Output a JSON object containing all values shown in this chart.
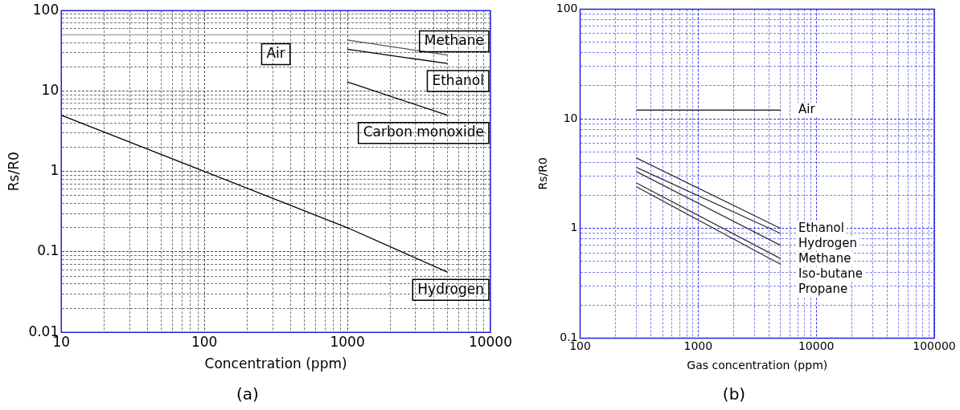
{
  "chart_data": [
    {
      "type": "line",
      "title": "(a)",
      "xlabel": "Concentration (ppm)",
      "ylabel": "Rs/R0",
      "log": "xy",
      "grid": true,
      "legend": false,
      "marker": "none",
      "line_style": "solid",
      "xlim": [
        10,
        10000
      ],
      "xticks": [
        10,
        {
          "value": 20,
          "label": null
        },
        {
          "value": 30,
          "label": null
        },
        {
          "value": 40,
          "label": null
        },
        {
          "value": 50,
          "label": null
        },
        {
          "value": 60,
          "label": null
        },
        {
          "value": 70,
          "label": null
        },
        {
          "value": 80,
          "label": null
        },
        {
          "value": 90,
          "label": null
        },
        100,
        {
          "value": 200,
          "label": null
        },
        {
          "value": 300,
          "label": null
        },
        {
          "value": 400,
          "label": null
        },
        {
          "value": 500,
          "label": null
        },
        {
          "value": 600,
          "label": null
        },
        {
          "value": 700,
          "label": null
        },
        {
          "value": 800,
          "label": null
        },
        {
          "value": 900,
          "label": null
        },
        1000,
        {
          "value": 2000,
          "label": null
        },
        {
          "value": 3000,
          "label": null
        },
        {
          "value": 4000,
          "label": null
        },
        {
          "value": 5000,
          "label": null
        },
        {
          "value": 6000,
          "label": null
        },
        {
          "value": 7000,
          "label": null
        },
        {
          "value": 8000,
          "label": null
        },
        {
          "value": 9000,
          "label": null
        },
        10000
      ],
      "ylim": [
        0.01,
        100
      ],
      "yticks": [
        0.01,
        {
          "value": 0.02,
          "label": null
        },
        {
          "value": 0.03,
          "label": null
        },
        {
          "value": 0.04,
          "label": null
        },
        {
          "value": 0.05,
          "label": null
        },
        {
          "value": 0.06,
          "label": null
        },
        {
          "value": 0.07,
          "label": null
        },
        {
          "value": 0.08,
          "label": null
        },
        {
          "value": 0.09,
          "label": null
        },
        0.1,
        {
          "value": 0.2,
          "label": null
        },
        {
          "value": 0.3,
          "label": null
        },
        {
          "value": 0.4,
          "label": null
        },
        {
          "value": 0.5,
          "label": null
        },
        {
          "value": 0.6,
          "label": null
        },
        {
          "value": 0.7,
          "label": null
        },
        {
          "value": 0.8,
          "label": null
        },
        {
          "value": 0.9,
          "label": null
        },
        1,
        {
          "value": 2,
          "label": null
        },
        {
          "value": 3,
          "label": null
        },
        {
          "value": 4,
          "label": null
        },
        {
          "value": 5,
          "label": null
        },
        {
          "value": 6,
          "label": null
        },
        {
          "value": 7,
          "label": null
        },
        {
          "value": 8,
          "label": null
        },
        {
          "value": 9,
          "label": null
        },
        10,
        {
          "value": 20,
          "label": null
        },
        {
          "value": 30,
          "label": null
        },
        {
          "value": 40,
          "label": null
        },
        {
          "value": 50,
          "label": null
        },
        {
          "value": 60,
          "label": null
        },
        {
          "value": 70,
          "label": null
        },
        {
          "value": 80,
          "label": null
        },
        {
          "value": 90,
          "label": null
        },
        100
      ],
      "series": [
        {
          "name": "Air",
          "color": "#a0a0a0",
          "x": [
            10,
            10000
          ],
          "values": [
            50,
            50
          ]
        },
        {
          "name": "Methane",
          "color": "#555555",
          "x": [
            1000,
            5000
          ],
          "values": [
            43,
            28
          ]
        },
        {
          "name": "Ethanol",
          "color": "#000000",
          "x": [
            1000,
            5000
          ],
          "values": [
            33,
            22
          ]
        },
        {
          "name": "Carbon monoxide",
          "color": "#000000",
          "x": [
            1000,
            5000
          ],
          "values": [
            13,
            5
          ]
        },
        {
          "name": "Hydrogen",
          "color": "#000000",
          "x": [
            10,
            100,
            1000,
            5000
          ],
          "values": [
            5,
            1,
            0.2,
            0.056
          ]
        }
      ]
    },
    {
      "type": "line",
      "title": "(b)",
      "xlabel": "Gas concentration (ppm)",
      "ylabel": "Rs/R0",
      "log": "xy",
      "grid": true,
      "legend": false,
      "marker": "none",
      "line_style": "solid",
      "xlim": [
        100,
        100000
      ],
      "xticks": [
        100,
        {
          "value": 200,
          "label": null
        },
        {
          "value": 300,
          "label": null
        },
        {
          "value": 400,
          "label": null
        },
        {
          "value": 500,
          "label": null
        },
        {
          "value": 600,
          "label": null
        },
        {
          "value": 700,
          "label": null
        },
        {
          "value": 800,
          "label": null
        },
        {
          "value": 900,
          "label": null
        },
        1000,
        {
          "value": 2000,
          "label": null
        },
        {
          "value": 3000,
          "label": null
        },
        {
          "value": 4000,
          "label": null
        },
        {
          "value": 5000,
          "label": null
        },
        {
          "value": 6000,
          "label": null
        },
        {
          "value": 7000,
          "label": null
        },
        {
          "value": 8000,
          "label": null
        },
        {
          "value": 9000,
          "label": null
        },
        10000,
        {
          "value": 20000,
          "label": null
        },
        {
          "value": 30000,
          "label": null
        },
        {
          "value": 40000,
          "label": null
        },
        {
          "value": 50000,
          "label": null
        },
        {
          "value": 60000,
          "label": null
        },
        {
          "value": 70000,
          "label": null
        },
        {
          "value": 80000,
          "label": null
        },
        {
          "value": 90000,
          "label": null
        },
        100000
      ],
      "ylim": [
        0.1,
        100
      ],
      "yticks": [
        0.1,
        {
          "value": 0.2,
          "label": null
        },
        {
          "value": 0.3,
          "label": null
        },
        {
          "value": 0.4,
          "label": null
        },
        {
          "value": 0.5,
          "label": null
        },
        {
          "value": 0.6,
          "label": null
        },
        {
          "value": 0.7,
          "label": null
        },
        {
          "value": 0.8,
          "label": null
        },
        {
          "value": 0.9,
          "label": null
        },
        1,
        {
          "value": 2,
          "label": null
        },
        {
          "value": 3,
          "label": null
        },
        {
          "value": 4,
          "label": null
        },
        {
          "value": 5,
          "label": null
        },
        {
          "value": 6,
          "label": null
        },
        {
          "value": 7,
          "label": null
        },
        {
          "value": 8,
          "label": null
        },
        {
          "value": 9,
          "label": null
        },
        10,
        {
          "value": 20,
          "label": null
        },
        {
          "value": 30,
          "label": null
        },
        {
          "value": 40,
          "label": null
        },
        {
          "value": 50,
          "label": null
        },
        {
          "value": 60,
          "label": null
        },
        {
          "value": 70,
          "label": null
        },
        {
          "value": 80,
          "label": null
        },
        {
          "value": 90,
          "label": null
        },
        100
      ],
      "series": [
        {
          "name": "Air",
          "color": "#333333",
          "x": [
            300,
            5000
          ],
          "values": [
            12,
            12
          ]
        },
        {
          "name": "Ethanol",
          "color": "#333333",
          "x": [
            300,
            5000
          ],
          "values": [
            4.4,
            1.0
          ]
        },
        {
          "name": "Hydrogen",
          "color": "#333333",
          "x": [
            300,
            5000
          ],
          "values": [
            3.6,
            0.9
          ]
        },
        {
          "name": "Methane",
          "color": "#333333",
          "x": [
            300,
            5000
          ],
          "values": [
            3.3,
            0.7
          ]
        },
        {
          "name": "Iso-butane",
          "color": "#333333",
          "x": [
            300,
            5000
          ],
          "values": [
            2.6,
            0.53
          ]
        },
        {
          "name": "Propane",
          "color": "#333333",
          "x": [
            300,
            5000
          ],
          "values": [
            2.4,
            0.47
          ]
        }
      ]
    }
  ]
}
